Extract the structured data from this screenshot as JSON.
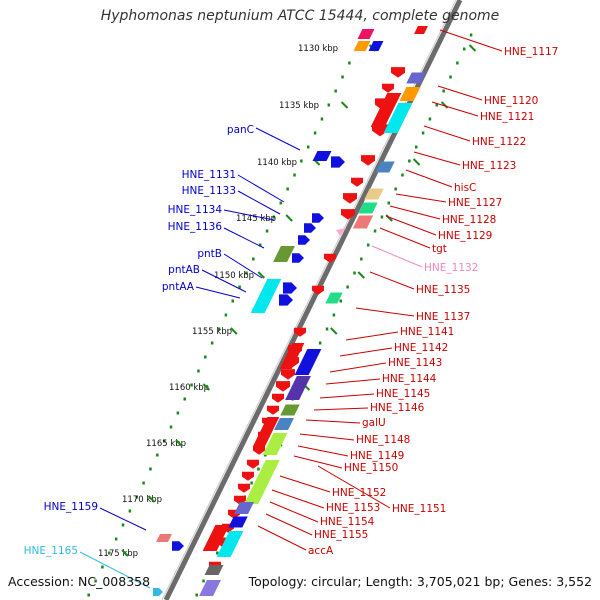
{
  "title": "Hyphomonas neptunium ATCC 15444, complete genome",
  "footer": {
    "accession": "Accession: NC_008358",
    "topology": "Topology: circular; Length: 3,705,021 bp; Genes: 3,552"
  },
  "colors": {
    "backbone": "#888888",
    "ticks": "#1a8a1a",
    "left_label": "#0000cc",
    "right_label": "#cc0000",
    "trna_label": "#ee88bb",
    "cyan_label": "#33bbdd"
  },
  "kbp_ticks": [
    {
      "label": "1130 kbp"
    },
    {
      "label": "1135 kbp"
    },
    {
      "label": "1140 kbp"
    },
    {
      "label": "1145 kbp"
    },
    {
      "label": "1150 kbp"
    },
    {
      "label": "1155 kbp"
    },
    {
      "label": "1160 kbp"
    },
    {
      "label": "1165 kbp"
    },
    {
      "label": "1170 kbp"
    },
    {
      "label": "1175 kbp"
    }
  ],
  "left_labels": [
    {
      "text": "panC",
      "color": "left_label"
    },
    {
      "text": "HNE_1131",
      "color": "left_label"
    },
    {
      "text": "HNE_1133",
      "color": "left_label"
    },
    {
      "text": "HNE_1134",
      "color": "left_label"
    },
    {
      "text": "HNE_1136",
      "color": "left_label"
    },
    {
      "text": "pntB",
      "color": "left_label"
    },
    {
      "text": "pntAB",
      "color": "left_label"
    },
    {
      "text": "pntAA",
      "color": "left_label"
    },
    {
      "text": "HNE_1159",
      "color": "left_label"
    },
    {
      "text": "HNE_1165",
      "color": "cyan_label"
    }
  ],
  "right_labels": [
    {
      "text": "HNE_1117",
      "color": "right_label"
    },
    {
      "text": "HNE_1120",
      "color": "right_label"
    },
    {
      "text": "HNE_1121",
      "color": "right_label"
    },
    {
      "text": "HNE_1122",
      "color": "right_label"
    },
    {
      "text": "HNE_1123",
      "color": "right_label"
    },
    {
      "text": "hisC",
      "color": "right_label"
    },
    {
      "text": "HNE_1127",
      "color": "right_label"
    },
    {
      "text": "HNE_1128",
      "color": "right_label"
    },
    {
      "text": "HNE_1129",
      "color": "right_label"
    },
    {
      "text": "tgt",
      "color": "right_label"
    },
    {
      "text": "HNE_1132",
      "color": "trna_label"
    },
    {
      "text": "HNE_1135",
      "color": "right_label"
    },
    {
      "text": "HNE_1137",
      "color": "right_label"
    },
    {
      "text": "HNE_1141",
      "color": "right_label"
    },
    {
      "text": "HNE_1142",
      "color": "right_label"
    },
    {
      "text": "HNE_1143",
      "color": "right_label"
    },
    {
      "text": "HNE_1144",
      "color": "right_label"
    },
    {
      "text": "HNE_1145",
      "color": "right_label"
    },
    {
      "text": "HNE_1146",
      "color": "right_label"
    },
    {
      "text": "galU",
      "color": "right_label"
    },
    {
      "text": "HNE_1148",
      "color": "right_label"
    },
    {
      "text": "HNE_1149",
      "color": "right_label"
    },
    {
      "text": "HNE_1150",
      "color": "right_label"
    },
    {
      "text": "HNE_1152",
      "color": "right_label"
    },
    {
      "text": "HNE_1151",
      "color": "right_label"
    },
    {
      "text": "HNE_1153",
      "color": "right_label"
    },
    {
      "text": "HNE_1154",
      "color": "right_label"
    },
    {
      "text": "HNE_1155",
      "color": "right_label"
    },
    {
      "text": "accA",
      "color": "right_label"
    }
  ]
}
